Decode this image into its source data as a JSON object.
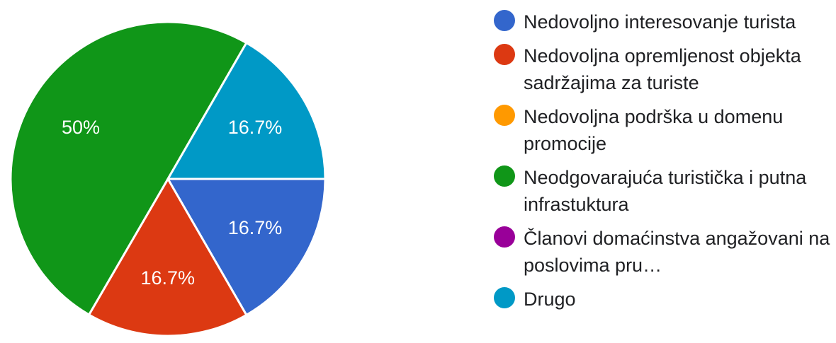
{
  "chart_data": {
    "type": "pie",
    "slices": [
      {
        "label": "Nedovoljno interesovanje turista",
        "value": 16.7,
        "display": "16.7%",
        "color": "#3366cc"
      },
      {
        "label": "Nedovoljna opremljenost objekta sadržajima za turiste",
        "value": 16.7,
        "display": "16.7%",
        "color": "#dc3912"
      },
      {
        "label": "Nedovoljna podrška u domenu promocije",
        "value": 0,
        "display": "",
        "color": "#ff9900"
      },
      {
        "label": "Neodgovarajuća turistička i putna infrastuktura",
        "value": 50,
        "display": "50%",
        "color": "#109618"
      },
      {
        "label": "Članovi domaćinstva angažovani na poslovima pru…",
        "value": 0,
        "display": "",
        "color": "#990099"
      },
      {
        "label": "Drugo",
        "value": 16.7,
        "display": "16.7%",
        "color": "#0099c6"
      }
    ],
    "legend_position": "right",
    "label_color": "#ffffff"
  }
}
